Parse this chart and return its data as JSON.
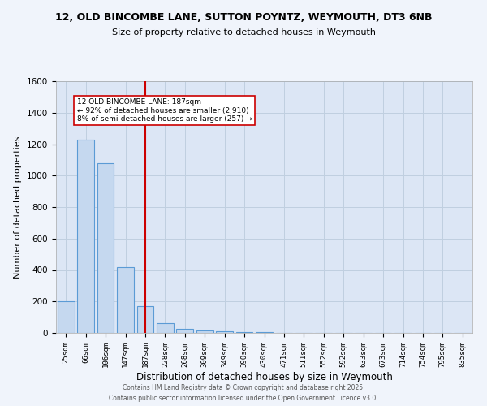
{
  "title1": "12, OLD BINCOMBE LANE, SUTTON POYNTZ, WEYMOUTH, DT3 6NB",
  "title2": "Size of property relative to detached houses in Weymouth",
  "xlabel": "Distribution of detached houses by size in Weymouth",
  "ylabel": "Number of detached properties",
  "categories": [
    "25sqm",
    "66sqm",
    "106sqm",
    "147sqm",
    "187sqm",
    "228sqm",
    "268sqm",
    "309sqm",
    "349sqm",
    "390sqm",
    "430sqm",
    "471sqm",
    "511sqm",
    "552sqm",
    "592sqm",
    "633sqm",
    "673sqm",
    "714sqm",
    "754sqm",
    "795sqm",
    "835sqm"
  ],
  "values": [
    200,
    1230,
    1080,
    420,
    170,
    60,
    25,
    15,
    8,
    4,
    3,
    2,
    1,
    0,
    0,
    0,
    0,
    0,
    0,
    0,
    0
  ],
  "bar_color": "#c5d8ef",
  "bar_edge_color": "#5b9bd5",
  "highlight_index": 4,
  "highlight_color": "#cc0000",
  "annotation_line1": "12 OLD BINCOMBE LANE: 187sqm",
  "annotation_line2": "← 92% of detached houses are smaller (2,910)",
  "annotation_line3": "8% of semi-detached houses are larger (257) →",
  "footer1": "Contains HM Land Registry data © Crown copyright and database right 2025.",
  "footer2": "Contains public sector information licensed under the Open Government Licence v3.0.",
  "fig_background": "#f0f4fb",
  "ax_background": "#dce6f5",
  "grid_color": "#c0cfe0",
  "ylim": [
    0,
    1600
  ],
  "yticks": [
    0,
    200,
    400,
    600,
    800,
    1000,
    1200,
    1400,
    1600
  ]
}
